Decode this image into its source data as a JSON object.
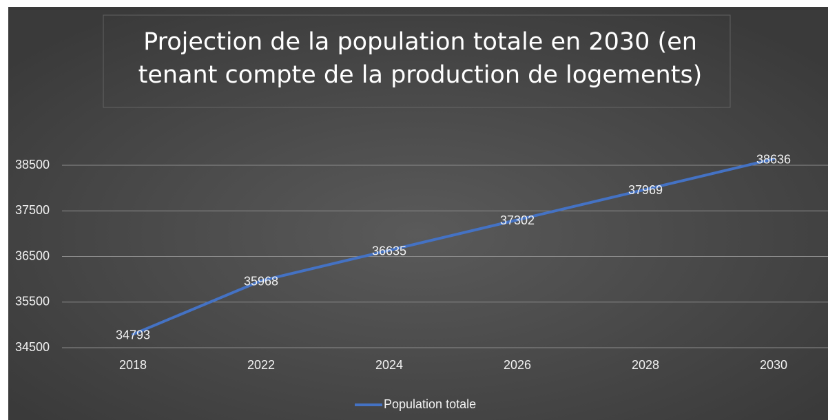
{
  "chart_data": {
    "type": "line",
    "title": [
      "Projection de la population totale en 2030 (en",
      "tenant compte de la production de logements)"
    ],
    "categories": [
      "2018",
      "2022",
      "2024",
      "2026",
      "2028",
      "2030"
    ],
    "series": [
      {
        "name": "Population totale",
        "color": "#4472c4",
        "values": [
          34793,
          35968,
          36635,
          37302,
          37969,
          38636
        ]
      }
    ],
    "ylim": [
      34500,
      38500
    ],
    "yticks": [
      34500,
      35500,
      36500,
      37500,
      38500
    ],
    "grid": true,
    "legend": "bottom"
  }
}
